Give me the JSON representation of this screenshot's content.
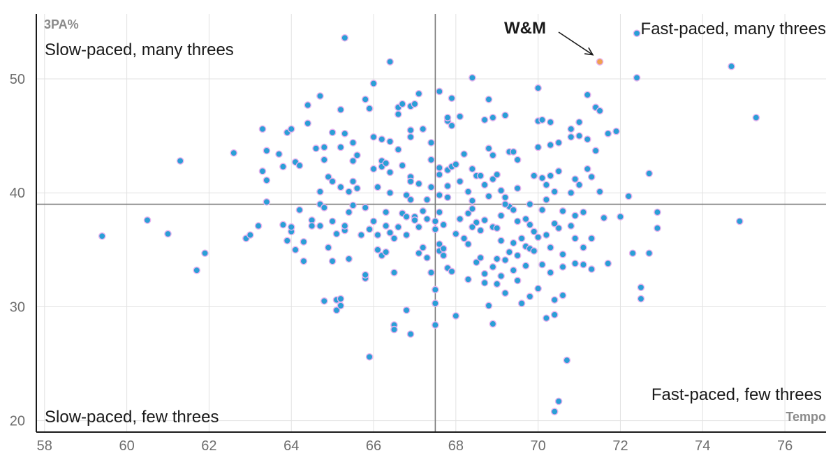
{
  "chart_data": {
    "type": "scatter",
    "xlabel": "Tempo",
    "ylabel": "3PA%",
    "xlim": [
      57.8,
      77
    ],
    "ylim": [
      19,
      55.7
    ],
    "x_ticks": [
      "58",
      "60",
      "62",
      "64",
      "66",
      "68",
      "70",
      "72",
      "74",
      "76"
    ],
    "y_ticks": [
      "20",
      "30",
      "40",
      "50"
    ],
    "grid": true,
    "reference_lines": {
      "x": 67.5,
      "y": 39
    },
    "quadrant_labels": {
      "top_left": "Slow-paced, many threes",
      "top_right": "Fast-paced, many threes",
      "bottom_left": "Slow-paced, few threes",
      "bottom_right": "Fast-paced, few threes"
    },
    "highlight": {
      "label": "W&M",
      "x": 71.5,
      "y": 51.5
    },
    "colors": {
      "point_fill": "#2a9fd6",
      "point_stroke": "#e7b2ee",
      "highlight": "#f0a050",
      "reference_line": "#7a7a7a",
      "grid": "#e2e2e2"
    },
    "points": [
      [
        59.4,
        36.2
      ],
      [
        60.5,
        37.6
      ],
      [
        61.0,
        36.4
      ],
      [
        61.3,
        42.8
      ],
      [
        61.7,
        33.2
      ],
      [
        61.9,
        34.7
      ],
      [
        62.6,
        43.5
      ],
      [
        62.9,
        36.0
      ],
      [
        63.0,
        36.3
      ],
      [
        63.2,
        37.1
      ],
      [
        63.3,
        45.6
      ],
      [
        63.3,
        41.9
      ],
      [
        63.4,
        41.1
      ],
      [
        63.4,
        43.7
      ],
      [
        63.4,
        39.2
      ],
      [
        63.7,
        43.4
      ],
      [
        63.8,
        37.2
      ],
      [
        63.8,
        42.3
      ],
      [
        63.9,
        45.3
      ],
      [
        63.9,
        35.8
      ],
      [
        64.0,
        45.6
      ],
      [
        64.0,
        36.6
      ],
      [
        64.0,
        37.0
      ],
      [
        64.1,
        42.7
      ],
      [
        64.1,
        35.0
      ],
      [
        64.2,
        42.4
      ],
      [
        64.2,
        38.5
      ],
      [
        64.3,
        35.7
      ],
      [
        64.3,
        34.0
      ],
      [
        64.4,
        47.7
      ],
      [
        64.4,
        46.1
      ],
      [
        64.5,
        37.6
      ],
      [
        64.5,
        37.1
      ],
      [
        64.6,
        43.9
      ],
      [
        64.7,
        48.5
      ],
      [
        64.7,
        39.0
      ],
      [
        64.7,
        40.1
      ],
      [
        64.7,
        37.1
      ],
      [
        64.8,
        42.9
      ],
      [
        64.8,
        44.0
      ],
      [
        64.8,
        30.5
      ],
      [
        64.9,
        35.2
      ],
      [
        64.9,
        41.4
      ],
      [
        65.0,
        45.3
      ],
      [
        65.0,
        41.0
      ],
      [
        65.0,
        34.0
      ],
      [
        65.0,
        37.5
      ],
      [
        65.1,
        36.4
      ],
      [
        65.1,
        29.7
      ],
      [
        65.1,
        30.6
      ],
      [
        65.2,
        47.3
      ],
      [
        65.2,
        44.0
      ],
      [
        65.2,
        40.5
      ],
      [
        65.2,
        30.1
      ],
      [
        65.2,
        30.7
      ],
      [
        65.3,
        53.6
      ],
      [
        65.3,
        45.2
      ],
      [
        65.3,
        36.7
      ],
      [
        65.3,
        37.1
      ],
      [
        65.4,
        38.3
      ],
      [
        65.4,
        40.1
      ],
      [
        65.4,
        34.2
      ],
      [
        65.5,
        44.4
      ],
      [
        65.5,
        42.8
      ],
      [
        65.5,
        41.0
      ],
      [
        65.6,
        40.4
      ],
      [
        65.6,
        43.3
      ],
      [
        65.7,
        36.3
      ],
      [
        65.8,
        38.7
      ],
      [
        65.8,
        32.5
      ],
      [
        65.8,
        32.8
      ],
      [
        65.8,
        48.2
      ],
      [
        65.9,
        47.4
      ],
      [
        65.9,
        25.6
      ],
      [
        65.9,
        36.8
      ],
      [
        66.0,
        37.5
      ],
      [
        66.0,
        49.6
      ],
      [
        66.0,
        44.9
      ],
      [
        66.0,
        42.1
      ],
      [
        66.1,
        36.3
      ],
      [
        66.1,
        35.0
      ],
      [
        66.1,
        40.5
      ],
      [
        66.2,
        42.8
      ],
      [
        66.2,
        42.3
      ],
      [
        66.2,
        44.7
      ],
      [
        66.2,
        34.5
      ],
      [
        66.3,
        34.8
      ],
      [
        66.3,
        42.6
      ],
      [
        66.3,
        38.3
      ],
      [
        66.3,
        37.1
      ],
      [
        66.4,
        51.5
      ],
      [
        66.4,
        44.5
      ],
      [
        66.4,
        41.8
      ],
      [
        66.4,
        40.0
      ],
      [
        66.4,
        36.5
      ],
      [
        66.5,
        36.0
      ],
      [
        66.5,
        33.0
      ],
      [
        66.5,
        28.4
      ],
      [
        66.5,
        28.0
      ],
      [
        66.6,
        47.5
      ],
      [
        66.6,
        46.9
      ],
      [
        66.6,
        43.8
      ],
      [
        66.7,
        47.8
      ],
      [
        66.7,
        42.4
      ],
      [
        66.7,
        38.2
      ],
      [
        66.8,
        37.9
      ],
      [
        66.8,
        39.8
      ],
      [
        66.8,
        36.3
      ],
      [
        66.8,
        29.7
      ],
      [
        66.9,
        47.6
      ],
      [
        66.9,
        45.5
      ],
      [
        66.9,
        44.9
      ],
      [
        66.9,
        41.4
      ],
      [
        66.9,
        39.4
      ],
      [
        66.9,
        27.6
      ],
      [
        67.0,
        47.8
      ],
      [
        67.0,
        37.9
      ],
      [
        67.0,
        37.6
      ],
      [
        67.1,
        48.7
      ],
      [
        67.1,
        40.8
      ],
      [
        67.1,
        37.0
      ],
      [
        67.1,
        34.7
      ],
      [
        67.2,
        38.4
      ],
      [
        67.2,
        45.6
      ],
      [
        67.2,
        35.2
      ],
      [
        67.3,
        37.7
      ],
      [
        67.3,
        39.4
      ],
      [
        67.3,
        34.3
      ],
      [
        67.4,
        33.0
      ],
      [
        67.4,
        44.4
      ],
      [
        67.4,
        42.9
      ],
      [
        67.4,
        40.5
      ],
      [
        67.5,
        36.8
      ],
      [
        67.5,
        31.5
      ],
      [
        67.5,
        30.3
      ],
      [
        67.5,
        28.4
      ],
      [
        67.6,
        48.9
      ],
      [
        67.6,
        42.2
      ],
      [
        67.6,
        41.6
      ],
      [
        67.6,
        39.8
      ],
      [
        67.6,
        38.3
      ],
      [
        67.6,
        35.5
      ],
      [
        67.6,
        34.9
      ],
      [
        67.7,
        35.1
      ],
      [
        67.7,
        34.5
      ],
      [
        67.7,
        37.2
      ],
      [
        67.8,
        46.3
      ],
      [
        67.8,
        46.6
      ],
      [
        67.8,
        42.0
      ],
      [
        67.8,
        40.6
      ],
      [
        67.8,
        39.6
      ],
      [
        67.8,
        33.4
      ],
      [
        67.9,
        48.3
      ],
      [
        67.9,
        45.9
      ],
      [
        67.9,
        42.3
      ],
      [
        67.9,
        33.1
      ],
      [
        68.0,
        42.5
      ],
      [
        68.0,
        36.4
      ],
      [
        68.0,
        29.2
      ],
      [
        68.1,
        46.7
      ],
      [
        68.1,
        41.0
      ],
      [
        68.1,
        37.7
      ],
      [
        68.2,
        43.4
      ],
      [
        68.2,
        36.0
      ],
      [
        68.3,
        40.1
      ],
      [
        68.3,
        38.2
      ],
      [
        68.3,
        32.4
      ],
      [
        68.3,
        35.5
      ],
      [
        68.4,
        50.1
      ],
      [
        68.4,
        42.1
      ],
      [
        68.4,
        39.3
      ],
      [
        68.4,
        38.6
      ],
      [
        68.5,
        41.5
      ],
      [
        68.5,
        37.4
      ],
      [
        68.5,
        33.9
      ],
      [
        68.6,
        36.7
      ],
      [
        68.6,
        34.3
      ],
      [
        68.7,
        46.4
      ],
      [
        68.7,
        40.7
      ],
      [
        68.7,
        37.6
      ],
      [
        68.7,
        32.1
      ],
      [
        68.7,
        32.9
      ],
      [
        68.8,
        48.2
      ],
      [
        68.8,
        43.9
      ],
      [
        68.8,
        39.7
      ],
      [
        68.8,
        30.1
      ],
      [
        68.9,
        46.6
      ],
      [
        68.9,
        43.3
      ],
      [
        68.9,
        41.2
      ],
      [
        68.9,
        37.0
      ],
      [
        68.9,
        33.5
      ],
      [
        68.9,
        28.5
      ],
      [
        69.0,
        41.6
      ],
      [
        69.0,
        36.9
      ],
      [
        69.0,
        34.2
      ],
      [
        69.0,
        32.0
      ],
      [
        69.1,
        40.2
      ],
      [
        69.1,
        38.0
      ],
      [
        69.1,
        35.8
      ],
      [
        69.1,
        32.7
      ],
      [
        69.2,
        46.8
      ],
      [
        69.2,
        39.6
      ],
      [
        69.2,
        34.1
      ],
      [
        69.2,
        31.2
      ],
      [
        69.3,
        43.6
      ],
      [
        69.3,
        38.8
      ],
      [
        69.3,
        34.8
      ],
      [
        69.4,
        43.6
      ],
      [
        69.4,
        38.5
      ],
      [
        69.4,
        35.6
      ],
      [
        69.4,
        33.2
      ],
      [
        69.5,
        42.9
      ],
      [
        69.5,
        40.4
      ],
      [
        69.5,
        37.5
      ],
      [
        69.5,
        34.5
      ],
      [
        69.5,
        32.3
      ],
      [
        69.6,
        36.0
      ],
      [
        69.6,
        30.3
      ],
      [
        69.7,
        37.7
      ],
      [
        69.7,
        35.3
      ],
      [
        69.7,
        33.6
      ],
      [
        69.8,
        39.0
      ],
      [
        69.8,
        37.2
      ],
      [
        69.8,
        35.1
      ],
      [
        69.8,
        30.9
      ],
      [
        69.9,
        41.5
      ],
      [
        69.9,
        36.6
      ],
      [
        69.9,
        34.9
      ],
      [
        70.0,
        49.2
      ],
      [
        70.0,
        46.3
      ],
      [
        70.0,
        44.0
      ],
      [
        70.0,
        36.1
      ],
      [
        70.0,
        31.6
      ],
      [
        70.1,
        46.4
      ],
      [
        70.1,
        41.3
      ],
      [
        70.1,
        38.5
      ],
      [
        70.1,
        33.7
      ],
      [
        70.2,
        40.7
      ],
      [
        70.2,
        39.4
      ],
      [
        70.2,
        36.3
      ],
      [
        70.2,
        29.0
      ],
      [
        70.3,
        46.2
      ],
      [
        70.3,
        44.2
      ],
      [
        70.3,
        41.5
      ],
      [
        70.3,
        35.2
      ],
      [
        70.3,
        33.0
      ],
      [
        70.4,
        40.1
      ],
      [
        70.4,
        37.3
      ],
      [
        70.4,
        30.6
      ],
      [
        70.4,
        29.3
      ],
      [
        70.5,
        44.4
      ],
      [
        70.5,
        41.9
      ],
      [
        70.5,
        36.9
      ],
      [
        70.6,
        38.4
      ],
      [
        70.6,
        34.6
      ],
      [
        70.6,
        33.5
      ],
      [
        70.6,
        31.0
      ],
      [
        70.7,
        25.3
      ],
      [
        70.8,
        45.6
      ],
      [
        70.8,
        44.9
      ],
      [
        70.8,
        40.0
      ],
      [
        70.8,
        37.1
      ],
      [
        70.9,
        41.2
      ],
      [
        70.9,
        36.0
      ],
      [
        70.9,
        33.8
      ],
      [
        71.0,
        46.2
      ],
      [
        71.0,
        45.0
      ],
      [
        71.0,
        40.7
      ],
      [
        71.1,
        38.3
      ],
      [
        71.1,
        35.2
      ],
      [
        71.1,
        33.7
      ],
      [
        71.2,
        48.6
      ],
      [
        71.2,
        44.7
      ],
      [
        71.2,
        42.1
      ],
      [
        71.3,
        36.0
      ],
      [
        71.3,
        33.3
      ],
      [
        71.4,
        47.5
      ],
      [
        71.4,
        43.7
      ],
      [
        71.5,
        40.1
      ],
      [
        71.6,
        37.8
      ],
      [
        71.7,
        33.8
      ],
      [
        71.9,
        45.4
      ],
      [
        72.0,
        37.9
      ],
      [
        72.2,
        39.7
      ],
      [
        72.3,
        34.7
      ],
      [
        72.4,
        54.0
      ],
      [
        72.4,
        50.1
      ],
      [
        72.5,
        31.7
      ],
      [
        72.5,
        30.7
      ],
      [
        72.7,
        41.7
      ],
      [
        72.9,
        38.3
      ],
      [
        72.9,
        36.9
      ],
      [
        72.7,
        34.7
      ],
      [
        70.5,
        21.7
      ],
      [
        70.4,
        20.8
      ],
      [
        71.5,
        47.2
      ],
      [
        71.7,
        45.2
      ],
      [
        74.7,
        51.1
      ],
      [
        75.3,
        46.6
      ],
      [
        74.9,
        37.5
      ],
      [
        67.5,
        37.5
      ],
      [
        66.6,
        37.0
      ],
      [
        68.4,
        37.0
      ],
      [
        69.2,
        39.0
      ],
      [
        66.9,
        41.0
      ],
      [
        68.6,
        41.5
      ],
      [
        70.9,
        38.0
      ],
      [
        65.5,
        38.9
      ],
      [
        64.8,
        38.7
      ],
      [
        71.3,
        41.4
      ]
    ]
  }
}
